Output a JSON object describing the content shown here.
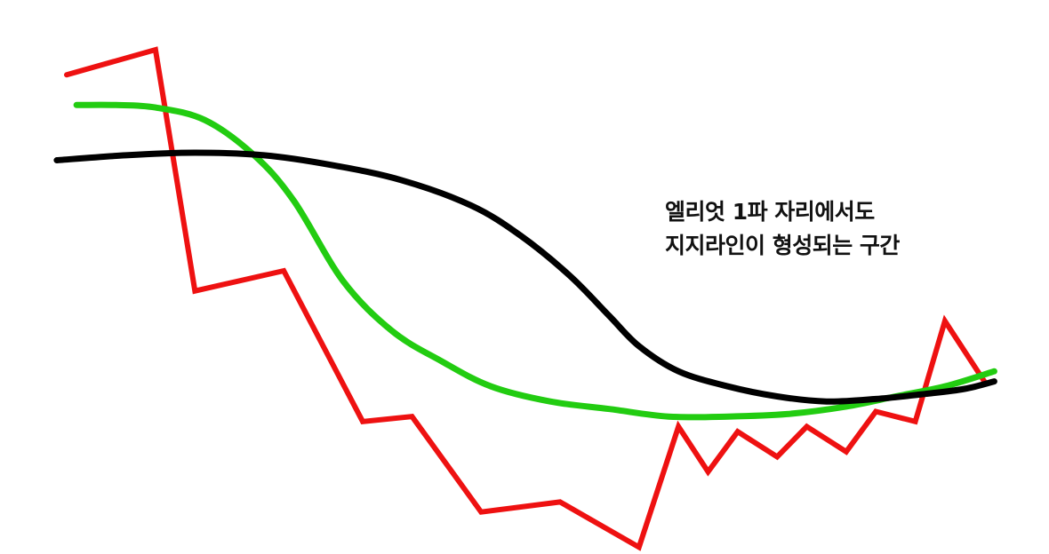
{
  "chart_data": {
    "type": "line",
    "title": "",
    "xlabel": "",
    "ylabel": "",
    "grid": false,
    "legend": "none",
    "xlim": [
      0,
      100
    ],
    "ylim": [
      0,
      100
    ],
    "annotation": {
      "lines": [
        "엘리엇 1파 자리에서도",
        "지지라인이 형성되는 구간"
      ]
    },
    "series": [
      {
        "color": "#ee1111",
        "smooth": false,
        "points": [
          [
            0,
            95
          ],
          [
            9,
            100
          ],
          [
            13,
            52
          ],
          [
            22,
            56
          ],
          [
            30,
            26
          ],
          [
            35,
            27
          ],
          [
            42,
            8
          ],
          [
            50,
            10
          ],
          [
            58,
            1
          ],
          [
            62,
            25
          ],
          [
            65,
            16
          ],
          [
            68,
            24
          ],
          [
            72,
            19
          ],
          [
            75,
            25
          ],
          [
            79,
            20
          ],
          [
            82,
            28
          ],
          [
            86,
            26
          ],
          [
            89,
            46
          ],
          [
            93,
            34
          ]
        ]
      },
      {
        "color": "#22cc11",
        "smooth": true,
        "points": [
          [
            1,
            89
          ],
          [
            5,
            89
          ],
          [
            9,
            88.5
          ],
          [
            14,
            86
          ],
          [
            19,
            79
          ],
          [
            23,
            70
          ],
          [
            28,
            54
          ],
          [
            33,
            44
          ],
          [
            38,
            38
          ],
          [
            43,
            33
          ],
          [
            49,
            30
          ],
          [
            55,
            28.5
          ],
          [
            61,
            27
          ],
          [
            67,
            27
          ],
          [
            73,
            27.5
          ],
          [
            79,
            29
          ],
          [
            84,
            31
          ],
          [
            89,
            33
          ],
          [
            94,
            36
          ]
        ]
      },
      {
        "color": "#000000",
        "smooth": true,
        "points": [
          [
            -1,
            78
          ],
          [
            6,
            79
          ],
          [
            13,
            79.5
          ],
          [
            20,
            79
          ],
          [
            27,
            77
          ],
          [
            34,
            74
          ],
          [
            41,
            69
          ],
          [
            46,
            63
          ],
          [
            51,
            55
          ],
          [
            55,
            47
          ],
          [
            58,
            41
          ],
          [
            62,
            36
          ],
          [
            67,
            33
          ],
          [
            72,
            31
          ],
          [
            77,
            30
          ],
          [
            82,
            30.5
          ],
          [
            87,
            31.5
          ],
          [
            91,
            32.5
          ],
          [
            94,
            34
          ]
        ]
      }
    ]
  }
}
